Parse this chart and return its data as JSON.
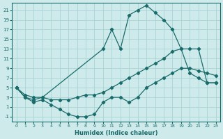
{
  "xlabel": "Humidex (Indice chaleur)",
  "bg_color": "#ceeaea",
  "grid_color": "#a8d4d4",
  "line_color": "#1a6b6b",
  "xlim": [
    -0.5,
    23.5
  ],
  "ylim": [
    -2,
    22.5
  ],
  "xticks": [
    0,
    1,
    2,
    3,
    4,
    5,
    6,
    7,
    8,
    9,
    10,
    11,
    12,
    13,
    14,
    15,
    16,
    17,
    18,
    19,
    20,
    21,
    22,
    23
  ],
  "yticks": [
    -1,
    1,
    3,
    5,
    7,
    9,
    11,
    13,
    15,
    17,
    19,
    21
  ],
  "line1_x": [
    0,
    1,
    2,
    3,
    10,
    11,
    12,
    13,
    14,
    15,
    16,
    17,
    18,
    19,
    20,
    21,
    22,
    23
  ],
  "line1_y": [
    5,
    3,
    2.5,
    3,
    13,
    17,
    13,
    20,
    21,
    22,
    20.5,
    19,
    17,
    13,
    8,
    7,
    6,
    6
  ],
  "line2_x": [
    0,
    1,
    2,
    3,
    4,
    5,
    6,
    7,
    8,
    9,
    10,
    11,
    12,
    13,
    14,
    15,
    16,
    17,
    18,
    19,
    20,
    21,
    22,
    23
  ],
  "line2_y": [
    5,
    3.5,
    3,
    3,
    2.5,
    2.5,
    2.5,
    3,
    3.5,
    3.5,
    4,
    5,
    6,
    7,
    8,
    9,
    10,
    11,
    12.5,
    13,
    13,
    13,
    6,
    6
  ],
  "line3_x": [
    0,
    1,
    2,
    3,
    4,
    5,
    6,
    7,
    8,
    9,
    10,
    11,
    12,
    13,
    14,
    15,
    16,
    17,
    18,
    19,
    20,
    21,
    22,
    23
  ],
  "line3_y": [
    5,
    3,
    2,
    2.5,
    1.5,
    0.5,
    -0.5,
    -1,
    -1,
    -0.5,
    2,
    3,
    3,
    2,
    3,
    5,
    6,
    7,
    8,
    9,
    9,
    8.5,
    8,
    7.5
  ]
}
